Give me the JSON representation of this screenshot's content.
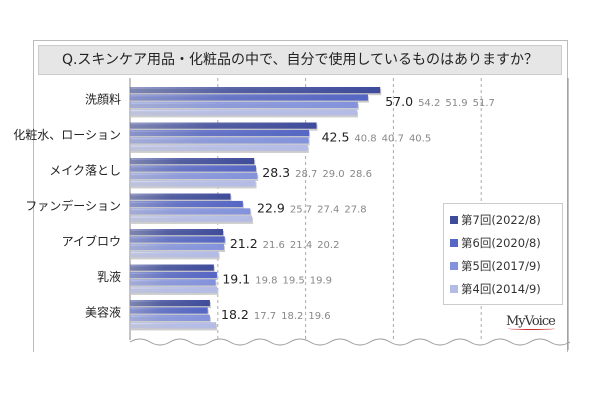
{
  "chart_data": {
    "type": "bar",
    "orientation": "horizontal",
    "title": "Q.スキンケア用品・化粧品の中で、自分で使用しているものはありますか？",
    "categories": [
      "洗顔料",
      "化粧水、ローション",
      "メイク落とし",
      "ファンデーション",
      "アイブロウ",
      "乳液",
      "美容液"
    ],
    "series": [
      {
        "name": "第7回(2022/8)",
        "color": "#3f4c9a",
        "values": [
          57.0,
          42.5,
          28.3,
          22.9,
          21.2,
          19.1,
          18.2
        ]
      },
      {
        "name": "第6回(2020/8)",
        "color": "#5566c4",
        "values": [
          54.2,
          40.8,
          28.7,
          25.7,
          21.6,
          19.8,
          17.7
        ]
      },
      {
        "name": "第5回(2017/9)",
        "color": "#8392dc",
        "values": [
          51.9,
          40.7,
          29.0,
          27.4,
          21.4,
          19.5,
          18.2
        ]
      },
      {
        "name": "第4回(2014/9)",
        "color": "#b4bce6",
        "values": [
          51.7,
          40.5,
          28.6,
          27.8,
          20.2,
          19.9,
          19.6
        ]
      }
    ],
    "xlim": [
      0,
      100
    ],
    "gridlines": [
      20,
      40,
      60,
      80
    ],
    "legend": "right"
  },
  "logo": "MyVoice"
}
